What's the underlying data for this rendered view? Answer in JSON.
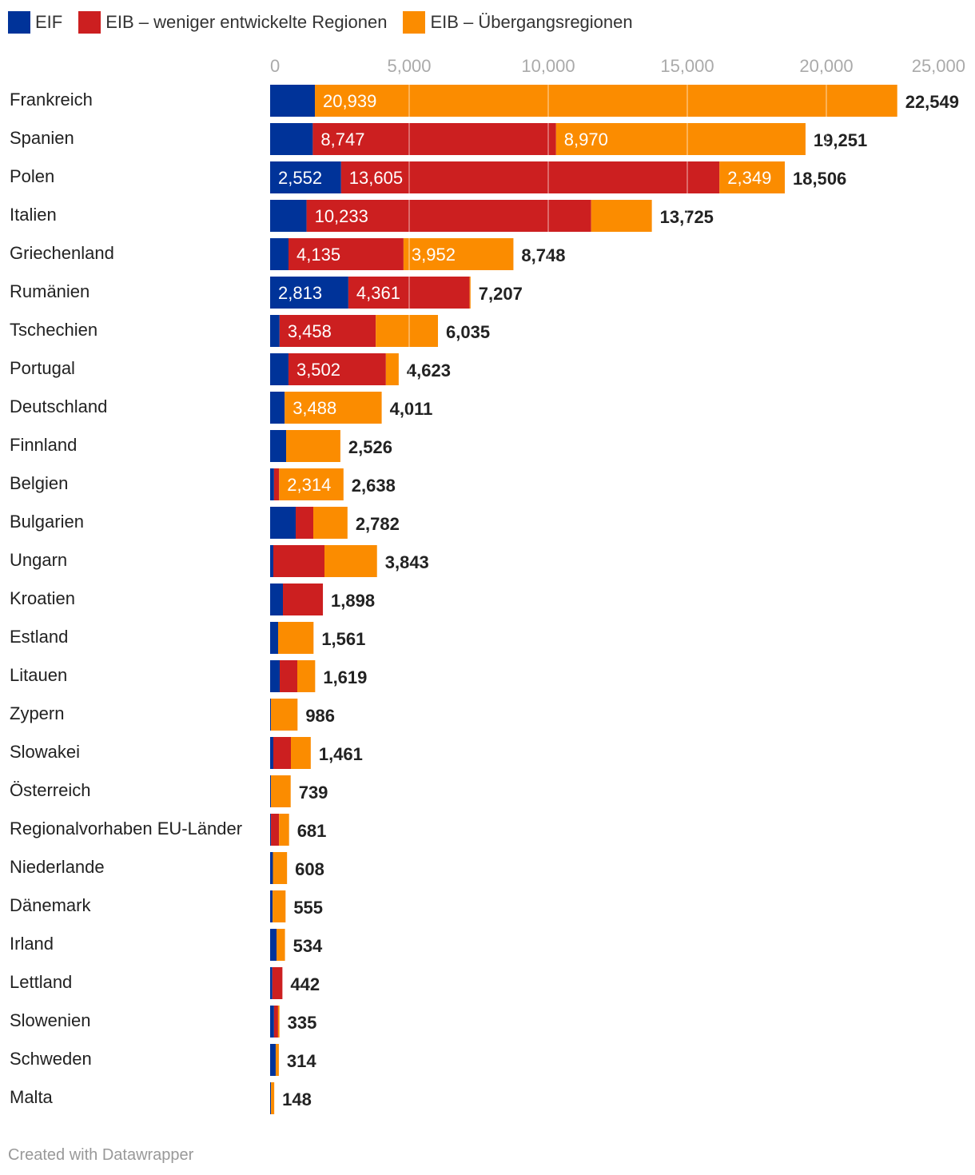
{
  "legend": [
    {
      "name": "EIF",
      "color": "#003399"
    },
    {
      "name": "EIB – weniger entwickelte Regionen",
      "color": "#cc1f20"
    },
    {
      "name": "EIB – Übergangsregionen",
      "color": "#fb8c00"
    }
  ],
  "footer": "Created with Datawrapper",
  "chart_data": {
    "type": "bar",
    "orientation": "horizontal",
    "stacked": true,
    "xlim": [
      0,
      25000
    ],
    "x_ticks": [
      "0",
      "5,000",
      "10,000",
      "15,000",
      "20,000",
      "25,000"
    ],
    "x_tick_values": [
      0,
      5000,
      10000,
      15000,
      20000,
      25000
    ],
    "legend_position": "top-left",
    "grid": true,
    "series_names": [
      "EIF",
      "EIB – weniger entwickelte Regionen",
      "EIB – Übergangsregionen"
    ],
    "rows": [
      {
        "category": "Frankreich",
        "values": [
          1610,
          0,
          20939
        ],
        "labels": [
          null,
          null,
          "20,939"
        ],
        "total": "22,549"
      },
      {
        "category": "Spanien",
        "values": [
          1534,
          8747,
          8970
        ],
        "labels": [
          null,
          "8,747",
          "8,970"
        ],
        "total": "19,251"
      },
      {
        "category": "Polen",
        "values": [
          2552,
          13605,
          2349
        ],
        "labels": [
          "2,552",
          "13,605",
          "2,349"
        ],
        "total": "18,506"
      },
      {
        "category": "Italien",
        "values": [
          1310,
          10233,
          2182
        ],
        "labels": [
          null,
          "10,233",
          null
        ],
        "total": "13,725"
      },
      {
        "category": "Griechenland",
        "values": [
          661,
          4135,
          3952
        ],
        "labels": [
          null,
          "4,135",
          "3,952"
        ],
        "total": "8,748"
      },
      {
        "category": "Rumänien",
        "values": [
          2813,
          4361,
          33
        ],
        "labels": [
          "2,813",
          "4,361",
          null
        ],
        "total": "7,207"
      },
      {
        "category": "Tschechien",
        "values": [
          340,
          3458,
          2237
        ],
        "labels": [
          null,
          "3,458",
          null
        ],
        "total": "6,035"
      },
      {
        "category": "Portugal",
        "values": [
          660,
          3502,
          461
        ],
        "labels": [
          null,
          "3,502",
          null
        ],
        "total": "4,623"
      },
      {
        "category": "Deutschland",
        "values": [
          523,
          0,
          3488
        ],
        "labels": [
          null,
          null,
          "3,488"
        ],
        "total": "4,011"
      },
      {
        "category": "Finnland",
        "values": [
          575,
          0,
          1951
        ],
        "labels": [
          null,
          null,
          null
        ],
        "total": "2,526"
      },
      {
        "category": "Belgien",
        "values": [
          140,
          184,
          2314
        ],
        "labels": [
          null,
          null,
          "2,314"
        ],
        "total": "2,638"
      },
      {
        "category": "Bulgarien",
        "values": [
          920,
          632,
          1230
        ],
        "labels": [
          null,
          null,
          null
        ],
        "total": "2,782"
      },
      {
        "category": "Ungarn",
        "values": [
          115,
          1839,
          1889
        ],
        "labels": [
          null,
          null,
          null
        ],
        "total": "3,843"
      },
      {
        "category": "Kroatien",
        "values": [
          460,
          1438,
          0
        ],
        "labels": [
          null,
          null,
          null
        ],
        "total": "1,898"
      },
      {
        "category": "Estland",
        "values": [
          287,
          0,
          1274
        ],
        "labels": [
          null,
          null,
          null
        ],
        "total": "1,561"
      },
      {
        "category": "Litauen",
        "values": [
          345,
          632,
          642
        ],
        "labels": [
          null,
          null,
          null
        ],
        "total": "1,619"
      },
      {
        "category": "Zypern",
        "values": [
          30,
          0,
          956
        ],
        "labels": [
          null,
          null,
          null
        ],
        "total": "986"
      },
      {
        "category": "Slowakei",
        "values": [
          115,
          632,
          714
        ],
        "labels": [
          null,
          null,
          null
        ],
        "total": "1,461"
      },
      {
        "category": "Österreich",
        "values": [
          30,
          0,
          709
        ],
        "labels": [
          null,
          null,
          null
        ],
        "total": "739"
      },
      {
        "category": "Regionalvorhaben EU-Länder",
        "values": [
          30,
          290,
          361
        ],
        "labels": [
          null,
          null,
          null
        ],
        "total": "681"
      },
      {
        "category": "Niederlande",
        "values": [
          100,
          0,
          508
        ],
        "labels": [
          null,
          null,
          null
        ],
        "total": "608"
      },
      {
        "category": "Dänemark",
        "values": [
          90,
          0,
          465
        ],
        "labels": [
          null,
          null,
          null
        ],
        "total": "555"
      },
      {
        "category": "Irland",
        "values": [
          230,
          0,
          304
        ],
        "labels": [
          null,
          null,
          null
        ],
        "total": "534"
      },
      {
        "category": "Lettland",
        "values": [
          80,
          362,
          0
        ],
        "labels": [
          null,
          null,
          null
        ],
        "total": "442"
      },
      {
        "category": "Slowenien",
        "values": [
          140,
          145,
          50
        ],
        "labels": [
          null,
          null,
          null
        ],
        "total": "335"
      },
      {
        "category": "Schweden",
        "values": [
          200,
          0,
          114
        ],
        "labels": [
          null,
          null,
          null
        ],
        "total": "314"
      },
      {
        "category": "Malta",
        "values": [
          30,
          0,
          118
        ],
        "labels": [
          null,
          null,
          null
        ],
        "total": "148"
      }
    ]
  }
}
